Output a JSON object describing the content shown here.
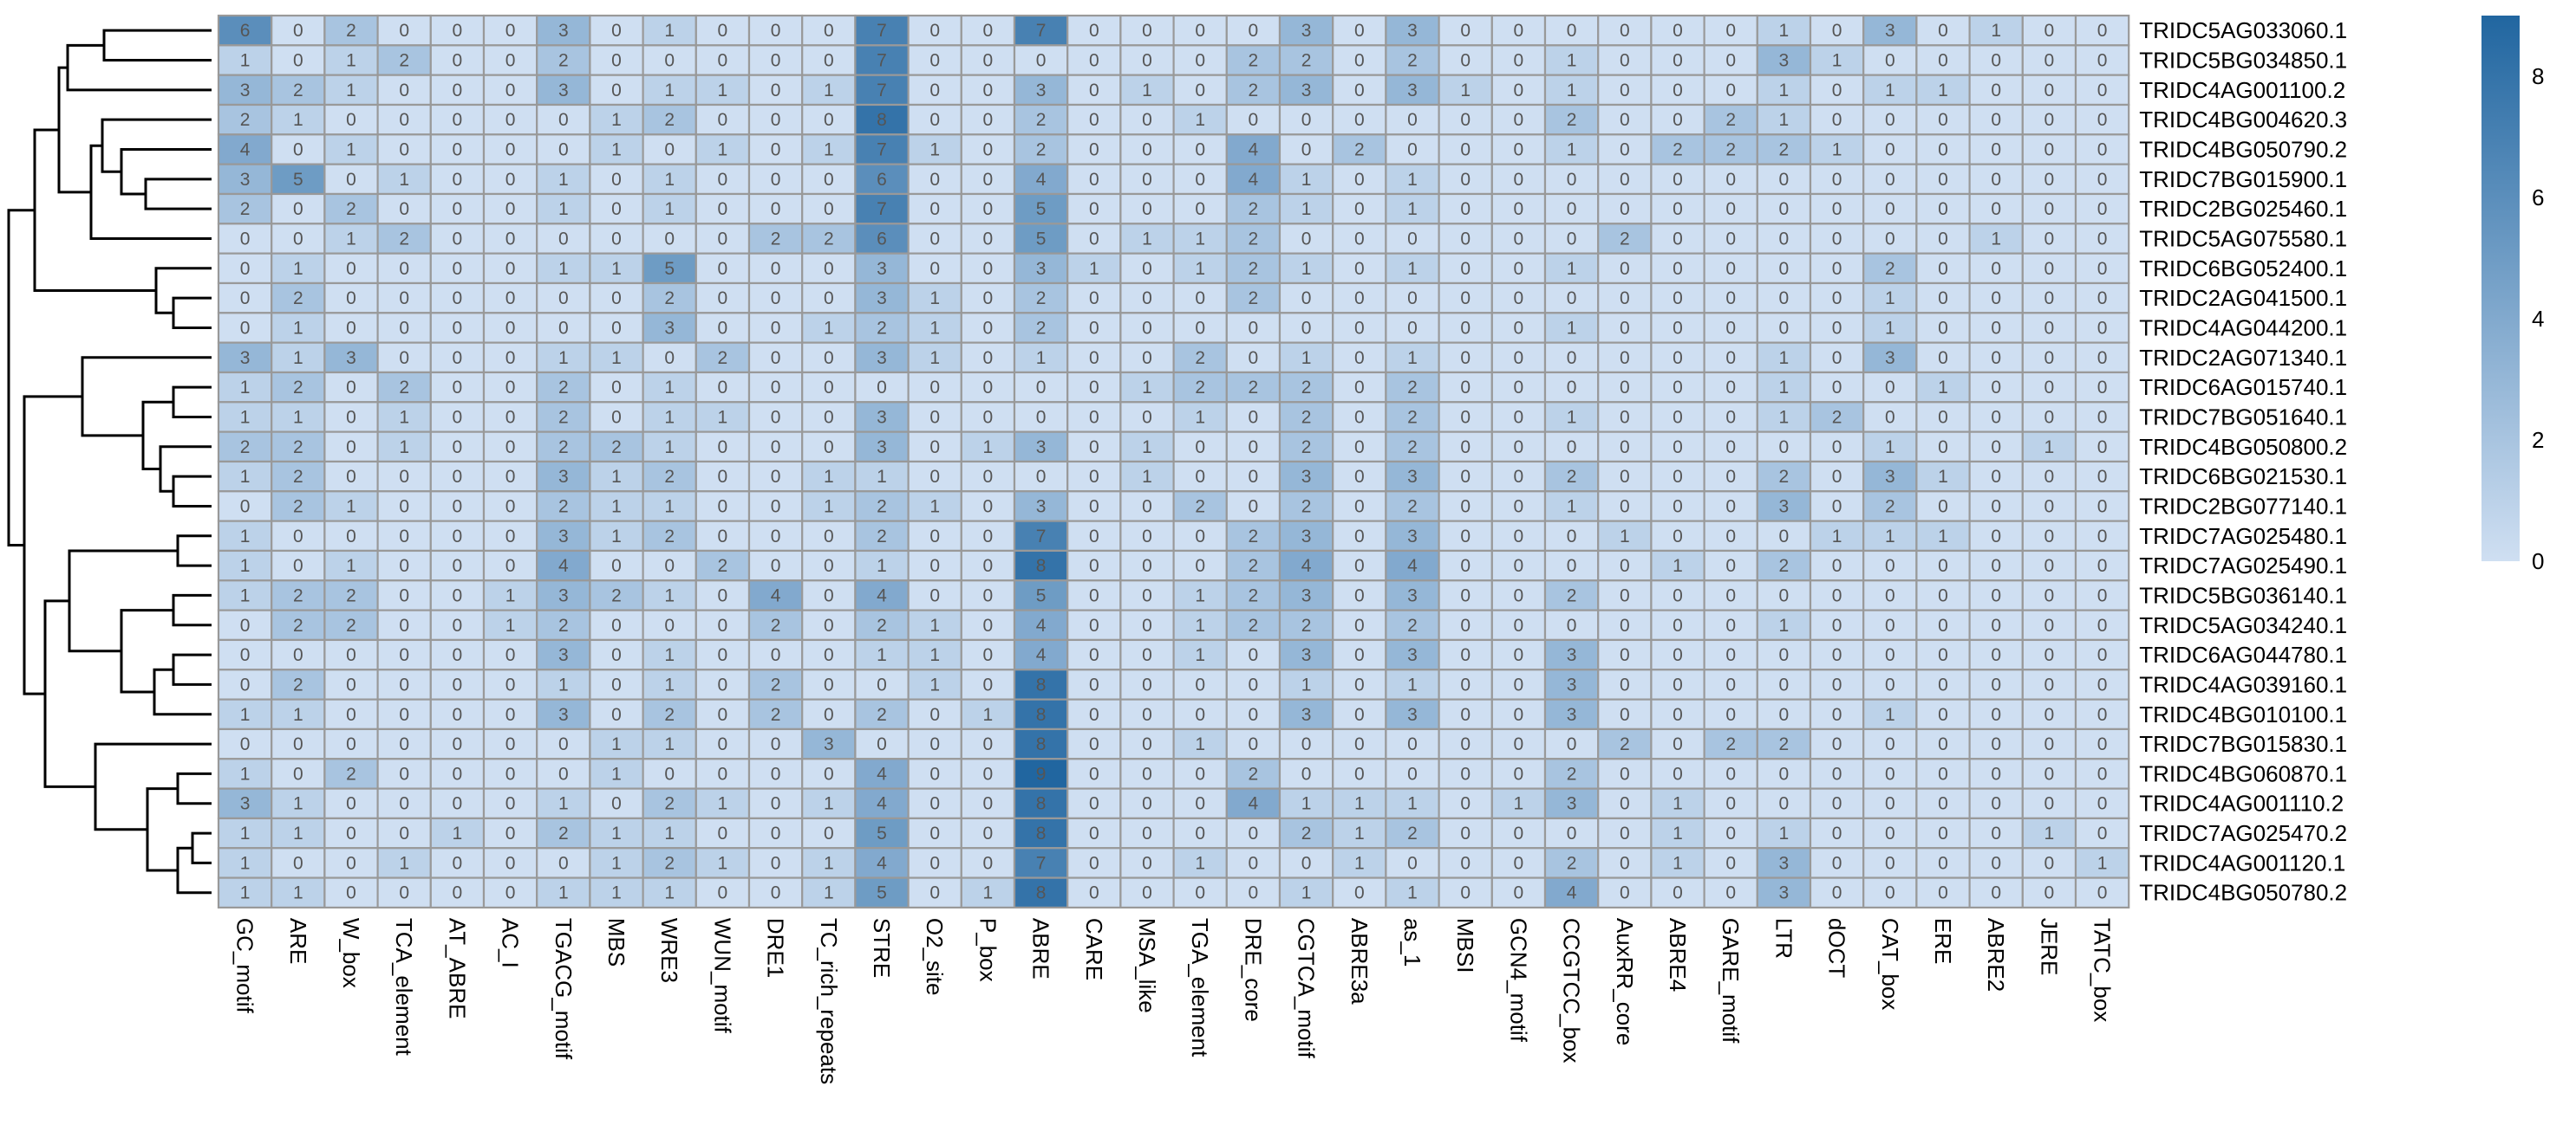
{
  "chart_data": {
    "type": "heatmap",
    "title": "",
    "xlabel": "",
    "ylabel": "",
    "columns": [
      "GC_motif",
      "ARE",
      "W_box",
      "TCA_element",
      "AT_ABRE",
      "AC_I",
      "TGACG_motif",
      "MBS",
      "WRE3",
      "WUN_motif",
      "DRE1",
      "TC_rich_repeats",
      "STRE",
      "O2_site",
      "P_box",
      "ABRE",
      "CARE",
      "MSA_like",
      "TGA_element",
      "DRE_core",
      "CGTCA_motif",
      "ABRE3a",
      "as_1",
      "MBSI",
      "GCN4_motif",
      "CCGTCC_box",
      "AuxRR_core",
      "ABRE4",
      "GARE_motif",
      "LTR",
      "dOCT",
      "CAT_box",
      "ERE",
      "ABRE2",
      "JERE",
      "TATC_box"
    ],
    "rows": [
      "TRIDC5AG033060.1",
      "TRIDC5BG034850.1",
      "TRIDC4AG001100.2",
      "TRIDC4BG004620.3",
      "TRIDC4BG050790.2",
      "TRIDC7BG015900.1",
      "TRIDC2BG025460.1",
      "TRIDC5AG075580.1",
      "TRIDC6BG052400.1",
      "TRIDC2AG041500.1",
      "TRIDC4AG044200.1",
      "TRIDC2AG071340.1",
      "TRIDC6AG015740.1",
      "TRIDC7BG051640.1",
      "TRIDC4BG050800.2",
      "TRIDC6BG021530.1",
      "TRIDC2BG077140.1",
      "TRIDC7AG025480.1",
      "TRIDC7AG025490.1",
      "TRIDC5BG036140.1",
      "TRIDC5AG034240.1",
      "TRIDC6AG044780.1",
      "TRIDC4AG039160.1",
      "TRIDC4BG010100.1",
      "TRIDC7BG015830.1",
      "TRIDC4BG060870.1",
      "TRIDC4AG001110.2",
      "TRIDC7AG025470.2",
      "TRIDC4AG001120.1",
      "TRIDC4BG050780.2"
    ],
    "values": [
      [
        6,
        0,
        2,
        0,
        0,
        0,
        3,
        0,
        1,
        0,
        0,
        0,
        7,
        0,
        0,
        7,
        0,
        0,
        0,
        0,
        3,
        0,
        3,
        0,
        0,
        0,
        0,
        0,
        0,
        1,
        0,
        3,
        0,
        1,
        0,
        0
      ],
      [
        1,
        0,
        1,
        2,
        0,
        0,
        2,
        0,
        0,
        0,
        0,
        0,
        7,
        0,
        0,
        0,
        0,
        0,
        0,
        2,
        2,
        0,
        2,
        0,
        0,
        1,
        0,
        0,
        0,
        3,
        1,
        0,
        0,
        0,
        0,
        0
      ],
      [
        3,
        2,
        1,
        0,
        0,
        0,
        3,
        0,
        1,
        1,
        0,
        1,
        7,
        0,
        0,
        3,
        0,
        1,
        0,
        2,
        3,
        0,
        3,
        1,
        0,
        1,
        0,
        0,
        0,
        1,
        0,
        1,
        1,
        0,
        0,
        0
      ],
      [
        2,
        1,
        0,
        0,
        0,
        0,
        0,
        1,
        2,
        0,
        0,
        0,
        8,
        0,
        0,
        2,
        0,
        0,
        1,
        0,
        0,
        0,
        0,
        0,
        0,
        2,
        0,
        0,
        2,
        1,
        0,
        0,
        0,
        0,
        0,
        0
      ],
      [
        4,
        0,
        1,
        0,
        0,
        0,
        0,
        1,
        0,
        1,
        0,
        1,
        7,
        1,
        0,
        2,
        0,
        0,
        0,
        4,
        0,
        2,
        0,
        0,
        0,
        1,
        0,
        2,
        2,
        2,
        1,
        0,
        0,
        0,
        0,
        0
      ],
      [
        3,
        5,
        0,
        1,
        0,
        0,
        1,
        0,
        1,
        0,
        0,
        0,
        6,
        0,
        0,
        4,
        0,
        0,
        0,
        4,
        1,
        0,
        1,
        0,
        0,
        0,
        0,
        0,
        0,
        0,
        0,
        0,
        0,
        0,
        0,
        0
      ],
      [
        2,
        0,
        2,
        0,
        0,
        0,
        1,
        0,
        1,
        0,
        0,
        0,
        7,
        0,
        0,
        5,
        0,
        0,
        0,
        2,
        1,
        0,
        1,
        0,
        0,
        0,
        0,
        0,
        0,
        0,
        0,
        0,
        0,
        0,
        0,
        0
      ],
      [
        0,
        0,
        1,
        2,
        0,
        0,
        0,
        0,
        0,
        0,
        2,
        2,
        6,
        0,
        0,
        5,
        0,
        1,
        1,
        2,
        0,
        0,
        0,
        0,
        0,
        0,
        2,
        0,
        0,
        0,
        0,
        0,
        0,
        1,
        0,
        0
      ],
      [
        0,
        1,
        0,
        0,
        0,
        0,
        1,
        1,
        5,
        0,
        0,
        0,
        3,
        0,
        0,
        3,
        1,
        0,
        1,
        2,
        1,
        0,
        1,
        0,
        0,
        1,
        0,
        0,
        0,
        0,
        0,
        2,
        0,
        0,
        0,
        0
      ],
      [
        0,
        2,
        0,
        0,
        0,
        0,
        0,
        0,
        2,
        0,
        0,
        0,
        3,
        1,
        0,
        2,
        0,
        0,
        0,
        2,
        0,
        0,
        0,
        0,
        0,
        0,
        0,
        0,
        0,
        0,
        0,
        1,
        0,
        0,
        0,
        0
      ],
      [
        0,
        1,
        0,
        0,
        0,
        0,
        0,
        0,
        3,
        0,
        0,
        1,
        2,
        1,
        0,
        2,
        0,
        0,
        0,
        0,
        0,
        0,
        0,
        0,
        0,
        1,
        0,
        0,
        0,
        0,
        0,
        1,
        0,
        0,
        0,
        0
      ],
      [
        3,
        1,
        3,
        0,
        0,
        0,
        1,
        1,
        0,
        2,
        0,
        0,
        3,
        1,
        0,
        1,
        0,
        0,
        2,
        0,
        1,
        0,
        1,
        0,
        0,
        0,
        0,
        0,
        0,
        1,
        0,
        3,
        0,
        0,
        0,
        0
      ],
      [
        1,
        2,
        0,
        2,
        0,
        0,
        2,
        0,
        1,
        0,
        0,
        0,
        0,
        0,
        0,
        0,
        0,
        1,
        2,
        2,
        2,
        0,
        2,
        0,
        0,
        0,
        0,
        0,
        0,
        1,
        0,
        0,
        1,
        0,
        0,
        0
      ],
      [
        1,
        1,
        0,
        1,
        0,
        0,
        2,
        0,
        1,
        1,
        0,
        0,
        3,
        0,
        0,
        0,
        0,
        0,
        1,
        0,
        2,
        0,
        2,
        0,
        0,
        1,
        0,
        0,
        0,
        1,
        2,
        0,
        0,
        0,
        0,
        0
      ],
      [
        2,
        2,
        0,
        1,
        0,
        0,
        2,
        2,
        1,
        0,
        0,
        0,
        3,
        0,
        1,
        3,
        0,
        1,
        0,
        0,
        2,
        0,
        2,
        0,
        0,
        0,
        0,
        0,
        0,
        0,
        0,
        1,
        0,
        0,
        1,
        0
      ],
      [
        1,
        2,
        0,
        0,
        0,
        0,
        3,
        1,
        2,
        0,
        0,
        1,
        1,
        0,
        0,
        0,
        0,
        1,
        0,
        0,
        3,
        0,
        3,
        0,
        0,
        2,
        0,
        0,
        0,
        2,
        0,
        3,
        1,
        0,
        0,
        0
      ],
      [
        0,
        2,
        1,
        0,
        0,
        0,
        2,
        1,
        1,
        0,
        0,
        1,
        2,
        1,
        0,
        3,
        0,
        0,
        2,
        0,
        2,
        0,
        2,
        0,
        0,
        1,
        0,
        0,
        0,
        3,
        0,
        2,
        0,
        0,
        0,
        0
      ],
      [
        1,
        0,
        0,
        0,
        0,
        0,
        3,
        1,
        2,
        0,
        0,
        0,
        2,
        0,
        0,
        7,
        0,
        0,
        0,
        2,
        3,
        0,
        3,
        0,
        0,
        0,
        1,
        0,
        0,
        0,
        1,
        1,
        1,
        0,
        0,
        0
      ],
      [
        1,
        0,
        1,
        0,
        0,
        0,
        4,
        0,
        0,
        2,
        0,
        0,
        1,
        0,
        0,
        8,
        0,
        0,
        0,
        2,
        4,
        0,
        4,
        0,
        0,
        0,
        0,
        1,
        0,
        2,
        0,
        0,
        0,
        0,
        0,
        0
      ],
      [
        1,
        2,
        2,
        0,
        0,
        1,
        3,
        2,
        1,
        0,
        4,
        0,
        4,
        0,
        0,
        5,
        0,
        0,
        1,
        2,
        3,
        0,
        3,
        0,
        0,
        2,
        0,
        0,
        0,
        0,
        0,
        0,
        0,
        0,
        0,
        0
      ],
      [
        0,
        2,
        2,
        0,
        0,
        1,
        2,
        0,
        0,
        0,
        2,
        0,
        2,
        1,
        0,
        4,
        0,
        0,
        1,
        2,
        2,
        0,
        2,
        0,
        0,
        0,
        0,
        0,
        0,
        1,
        0,
        0,
        0,
        0,
        0,
        0
      ],
      [
        0,
        0,
        0,
        0,
        0,
        0,
        3,
        0,
        1,
        0,
        0,
        0,
        1,
        1,
        0,
        4,
        0,
        0,
        1,
        0,
        3,
        0,
        3,
        0,
        0,
        3,
        0,
        0,
        0,
        0,
        0,
        0,
        0,
        0,
        0,
        0
      ],
      [
        0,
        2,
        0,
        0,
        0,
        0,
        1,
        0,
        1,
        0,
        2,
        0,
        0,
        1,
        0,
        8,
        0,
        0,
        0,
        0,
        1,
        0,
        1,
        0,
        0,
        3,
        0,
        0,
        0,
        0,
        0,
        0,
        0,
        0,
        0,
        0
      ],
      [
        1,
        1,
        0,
        0,
        0,
        0,
        3,
        0,
        2,
        0,
        2,
        0,
        2,
        0,
        1,
        8,
        0,
        0,
        0,
        0,
        3,
        0,
        3,
        0,
        0,
        3,
        0,
        0,
        0,
        0,
        0,
        1,
        0,
        0,
        0,
        0
      ],
      [
        0,
        0,
        0,
        0,
        0,
        0,
        0,
        1,
        1,
        0,
        0,
        3,
        0,
        0,
        0,
        8,
        0,
        0,
        1,
        0,
        0,
        0,
        0,
        0,
        0,
        0,
        2,
        0,
        2,
        2,
        0,
        0,
        0,
        0,
        0,
        0
      ],
      [
        1,
        0,
        2,
        0,
        0,
        0,
        0,
        1,
        0,
        0,
        0,
        0,
        4,
        0,
        0,
        9,
        0,
        0,
        0,
        2,
        0,
        0,
        0,
        0,
        0,
        2,
        0,
        0,
        0,
        0,
        0,
        0,
        0,
        0,
        0,
        0
      ],
      [
        3,
        1,
        0,
        0,
        0,
        0,
        1,
        0,
        2,
        1,
        0,
        1,
        4,
        0,
        0,
        8,
        0,
        0,
        0,
        4,
        1,
        1,
        1,
        0,
        1,
        3,
        0,
        1,
        0,
        0,
        0,
        0,
        0,
        0,
        0,
        0
      ],
      [
        1,
        1,
        0,
        0,
        1,
        0,
        2,
        1,
        1,
        0,
        0,
        0,
        5,
        0,
        0,
        8,
        0,
        0,
        0,
        0,
        2,
        1,
        2,
        0,
        0,
        0,
        0,
        1,
        0,
        1,
        0,
        0,
        0,
        0,
        1,
        0
      ],
      [
        1,
        0,
        0,
        1,
        0,
        0,
        0,
        1,
        2,
        1,
        0,
        1,
        4,
        0,
        0,
        7,
        0,
        0,
        1,
        0,
        0,
        1,
        0,
        0,
        0,
        2,
        0,
        1,
        0,
        3,
        0,
        0,
        0,
        0,
        0,
        1
      ],
      [
        1,
        1,
        0,
        0,
        0,
        0,
        1,
        1,
        1,
        0,
        0,
        1,
        5,
        0,
        1,
        8,
        0,
        0,
        0,
        0,
        1,
        0,
        1,
        0,
        0,
        4,
        0,
        0,
        0,
        3,
        0,
        0,
        0,
        0,
        0,
        0
      ]
    ],
    "colorscale": {
      "min": 0,
      "max": 9,
      "low_color": "#cfdff2",
      "high_color": "#2166a0",
      "ticks": [
        0,
        2,
        4,
        6,
        8
      ]
    },
    "cell_border_color": "#999999",
    "cell_text_color": "#555555",
    "dendrogram_color": "#000000",
    "grid": false,
    "legend_placement": "right"
  }
}
